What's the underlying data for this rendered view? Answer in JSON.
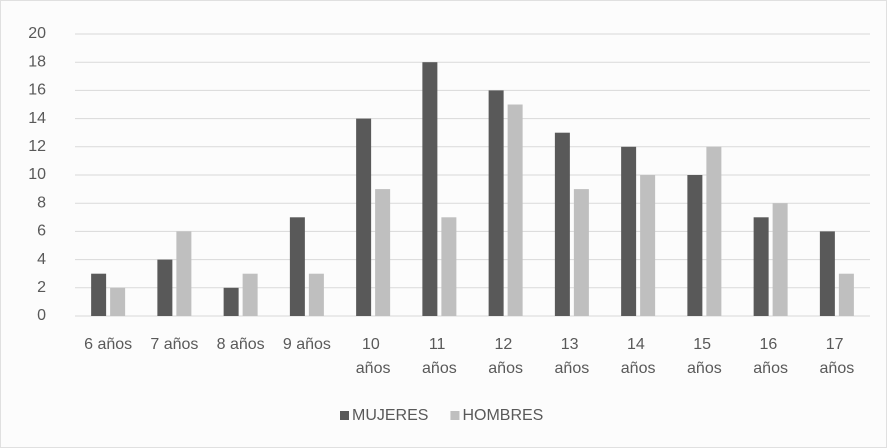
{
  "chart_data": {
    "type": "bar",
    "categories": [
      "6 años",
      "7 años",
      "8 años",
      "9 años",
      "10 años",
      "11 años",
      "12 años",
      "13 años",
      "14 años",
      "15 años",
      "16 años",
      "17 años"
    ],
    "series": [
      {
        "name": "MUJERES",
        "color": "#595959",
        "values": [
          3,
          4,
          2,
          7,
          14,
          18,
          16,
          13,
          12,
          10,
          7,
          6
        ]
      },
      {
        "name": "HOMBRES",
        "color": "#bfbfbf",
        "values": [
          2,
          6,
          3,
          3,
          9,
          7,
          15,
          9,
          10,
          12,
          8,
          3
        ]
      }
    ],
    "ylim": [
      0,
      20
    ],
    "yticks": [
      0,
      2,
      4,
      6,
      8,
      10,
      12,
      14,
      16,
      18,
      20
    ],
    "grid": true,
    "legend": "bottom"
  }
}
